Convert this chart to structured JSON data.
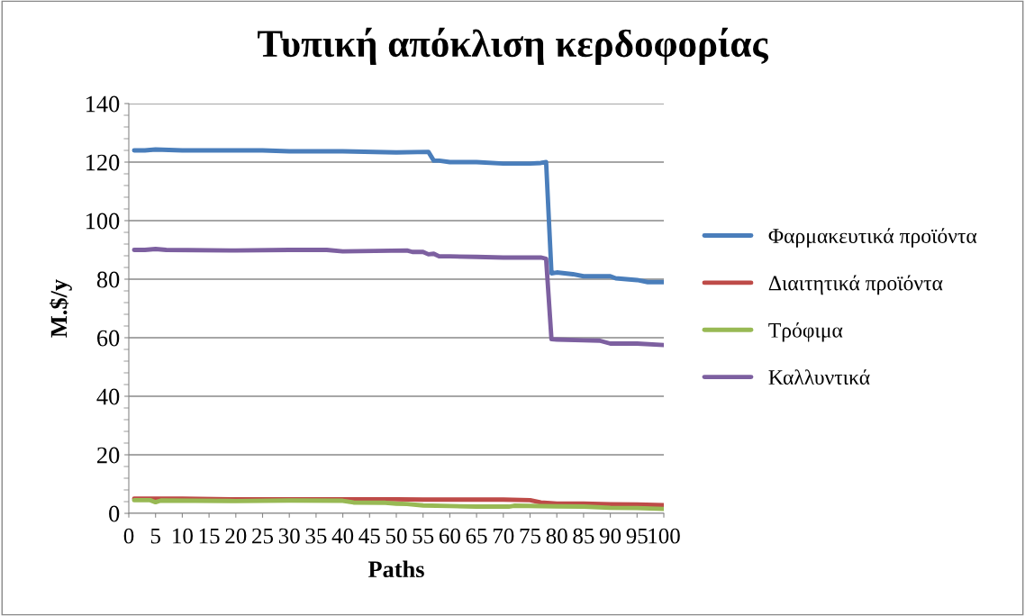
{
  "chart_data": {
    "type": "line",
    "title": "Τυπική απόκλιση κερδοφορίας",
    "xlabel": "Paths",
    "ylabel": "M.$/y",
    "xlim": [
      0,
      100
    ],
    "xticks": [
      0,
      5,
      10,
      15,
      20,
      25,
      30,
      35,
      40,
      45,
      50,
      55,
      60,
      65,
      70,
      75,
      80,
      85,
      90,
      95,
      100
    ],
    "ylim": [
      0,
      140
    ],
    "yticks": [
      0,
      20,
      40,
      60,
      80,
      100,
      120,
      140
    ],
    "grid": "y",
    "legend": "right",
    "marker": "none",
    "line_style": "solid",
    "series": [
      {
        "name": "Φαρμακευτικά προϊόντα",
        "color": "#4a7ebb",
        "x": [
          1,
          3,
          5,
          10,
          20,
          25,
          30,
          40,
          50,
          56,
          57,
          58,
          60,
          65,
          70,
          75,
          77,
          78,
          79,
          80,
          83,
          85,
          90,
          91,
          95,
          97,
          100
        ],
        "values": [
          124,
          124,
          124.3,
          124,
          124,
          124,
          123.7,
          123.7,
          123.3,
          123.5,
          120.5,
          120.5,
          120,
          120,
          119.5,
          119.5,
          119.7,
          120,
          82,
          82.3,
          81.7,
          81,
          81,
          80.3,
          79.7,
          79,
          79
        ]
      },
      {
        "name": "Διαιτητικά προϊόντα",
        "color": "#be4b48",
        "x": [
          1,
          10,
          20,
          30,
          40,
          50,
          55,
          60,
          65,
          70,
          75,
          77,
          80,
          85,
          90,
          95,
          100
        ],
        "values": [
          5,
          5,
          4.8,
          4.8,
          4.8,
          4.8,
          4.7,
          4.7,
          4.7,
          4.7,
          4.5,
          3.7,
          3.3,
          3.3,
          3.1,
          3,
          2.8
        ]
      },
      {
        "name": "Τρόφιμα",
        "color": "#98b954",
        "x": [
          1,
          4,
          5,
          6,
          20,
          30,
          40,
          42,
          48,
          50,
          52,
          55,
          60,
          65,
          70,
          71,
          72,
          80,
          85,
          90,
          95,
          100
        ],
        "values": [
          4.5,
          4.5,
          3.8,
          4.4,
          4.2,
          4.4,
          4.3,
          3.7,
          3.6,
          3.3,
          3.2,
          2.7,
          2.5,
          2.3,
          2.3,
          2.3,
          2.6,
          2.4,
          2.3,
          1.9,
          1.8,
          1.5
        ]
      },
      {
        "name": "Καλλυντικά",
        "color": "#7d60a0",
        "x": [
          1,
          3,
          5,
          7,
          20,
          30,
          37,
          40,
          52,
          53,
          55,
          56,
          57,
          58,
          60,
          65,
          70,
          77,
          78,
          79,
          80,
          85,
          88,
          90,
          95,
          100
        ],
        "values": [
          90,
          90,
          90.3,
          90,
          89.8,
          90,
          90,
          89.5,
          89.8,
          89.3,
          89.3,
          88.5,
          88.7,
          87.8,
          87.8,
          87.6,
          87.4,
          87.4,
          87,
          59.5,
          59.4,
          59.1,
          59,
          58,
          58,
          57.5
        ]
      }
    ]
  }
}
